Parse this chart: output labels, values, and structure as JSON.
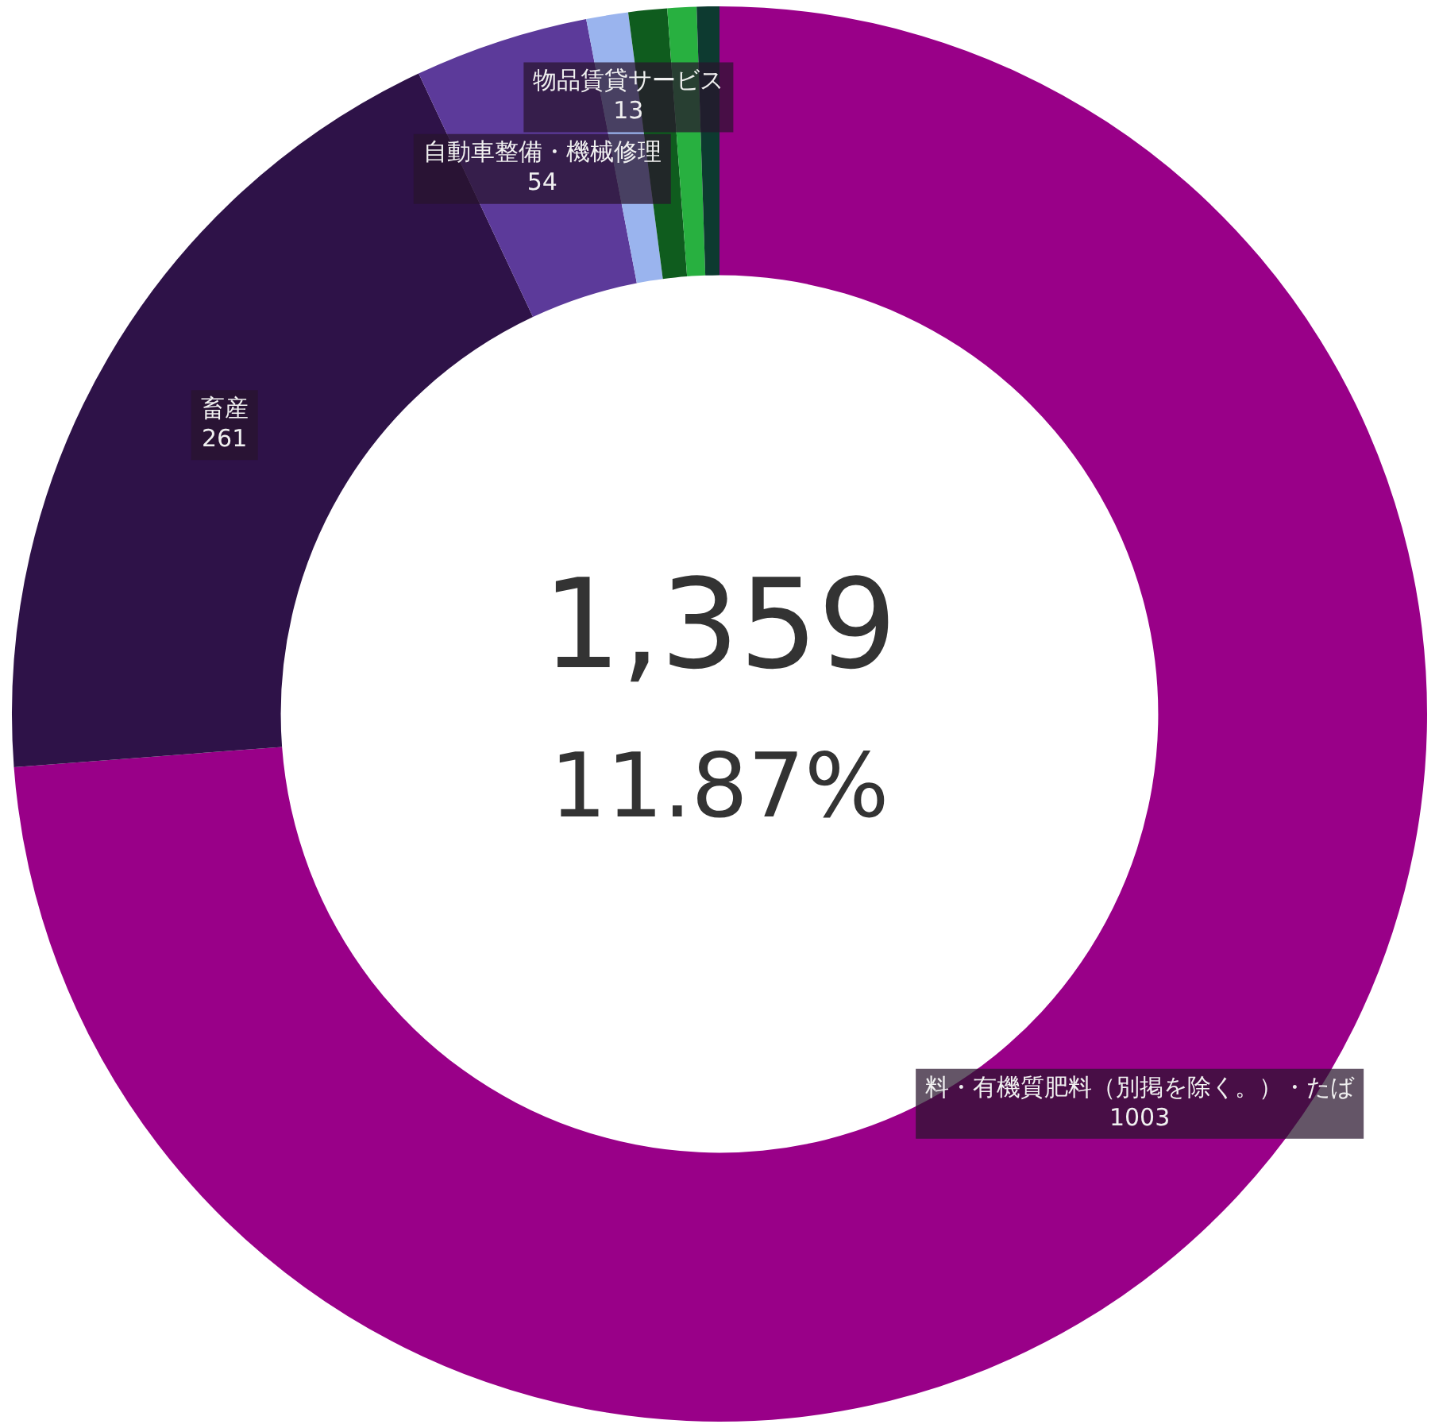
{
  "chart_data": {
    "type": "donut",
    "categories": [
      "料・有機質肥料（別掲を除く。）・たば",
      "畜産",
      "自動車整備・機械修理",
      "物品賃貸サービス",
      null,
      null,
      null
    ],
    "values": [
      1003,
      261,
      54,
      13,
      12,
      9,
      7
    ],
    "colors": [
      "#990088",
      "#2e1248",
      "#5c3a9a",
      "#9ab4ee",
      "#0f5c1e",
      "#28b040",
      "#0d3a30"
    ],
    "value_labels": [
      "1003",
      "261",
      "54",
      "13",
      null,
      null,
      null
    ],
    "annotations": [
      "1,359",
      "11.87%"
    ],
    "legend": false
  }
}
